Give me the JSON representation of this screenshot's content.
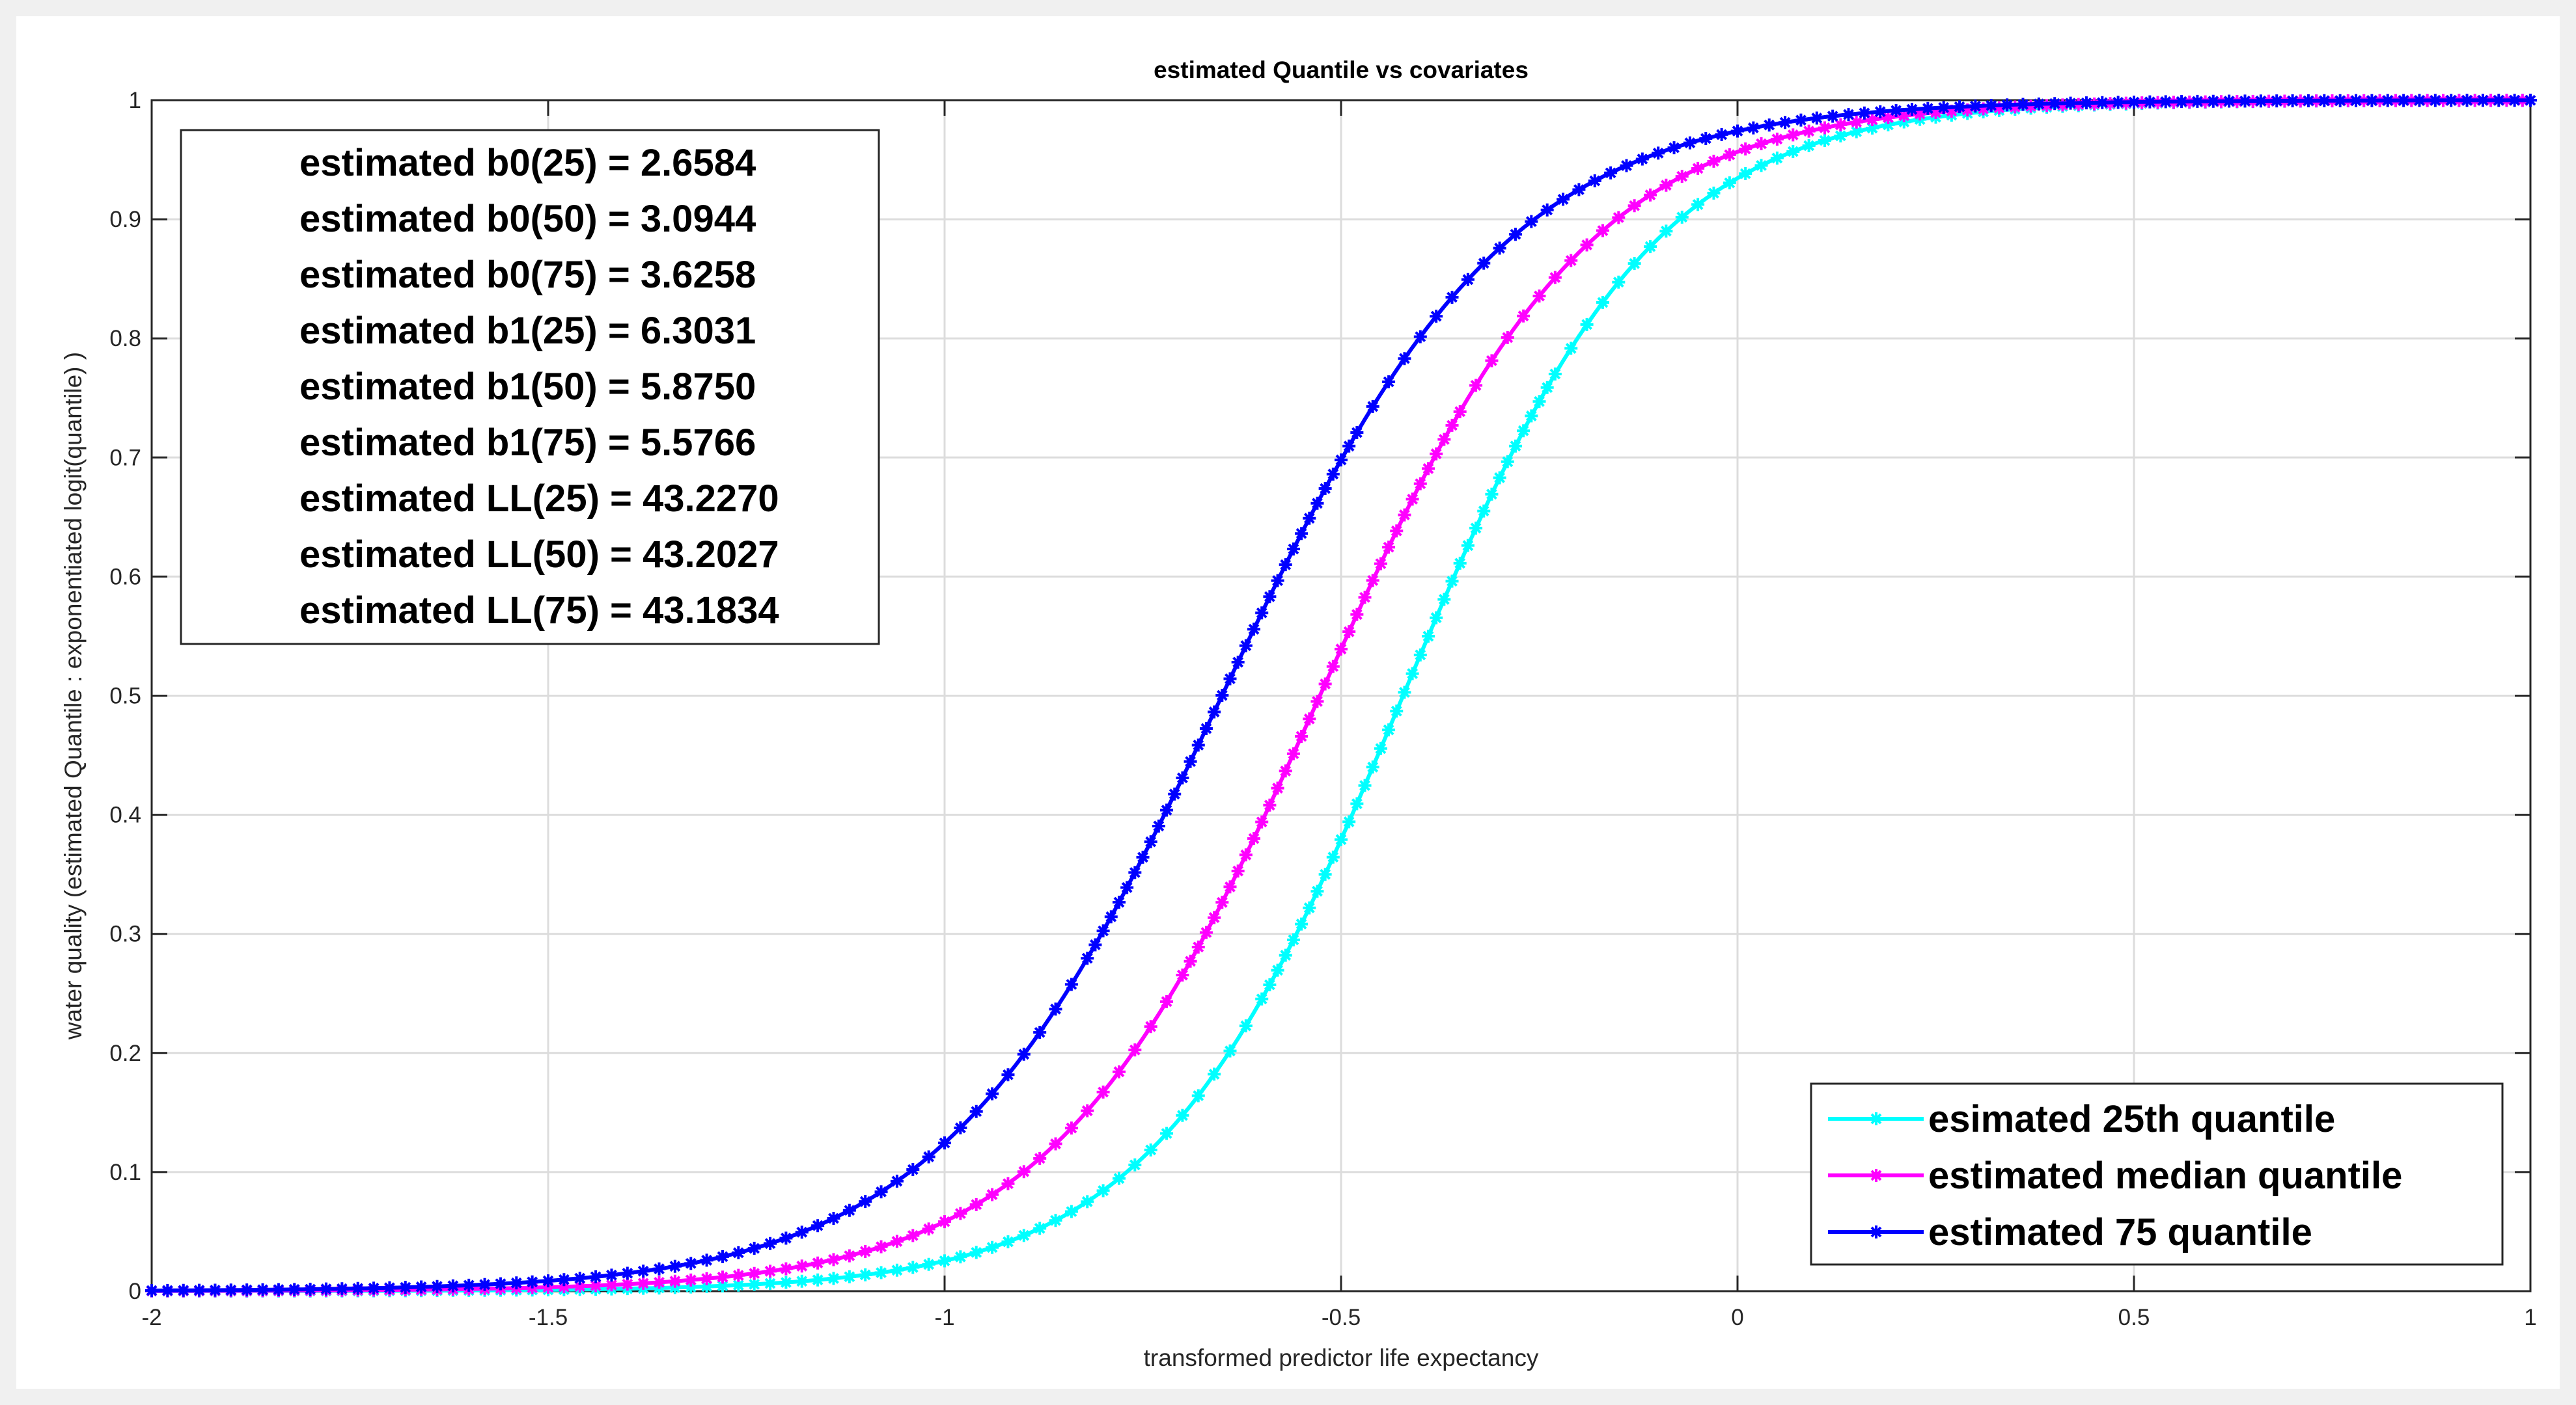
{
  "chart_data": {
    "type": "line",
    "title": "estimated Quantile vs covariates",
    "xlabel": "transformed predictor life expectancy",
    "ylabel": "water quality (estimated Quantile : exponentiated logit(quantile) )",
    "xlim": [
      -2,
      1
    ],
    "ylim": [
      0,
      1
    ],
    "xticks": [
      -2,
      -1.5,
      -1,
      -0.5,
      0,
      0.5,
      1
    ],
    "xtick_labels": [
      "-2",
      "-1.5",
      "-1",
      "-0.5",
      "0",
      "0.5",
      "1"
    ],
    "yticks": [
      0,
      0.1,
      0.2,
      0.3,
      0.4,
      0.5,
      0.6,
      0.7,
      0.8,
      0.9,
      1
    ],
    "ytick_labels": [
      "0",
      "0.1",
      "0.2",
      "0.3",
      "0.4",
      "0.5",
      "0.6",
      "0.7",
      "0.8",
      "0.9",
      "1"
    ],
    "grid": true,
    "legend_position": "bottom-right",
    "annotation_position": "top-left",
    "annotation_lines": [
      "estimated b0(25) = 2.6584",
      "estimated b0(50) = 3.0944",
      "estimated b0(75) = 3.6258",
      "estimated b1(25) = 6.3031",
      "estimated b1(50) = 5.8750",
      "estimated b1(75) = 5.5766",
      "estimated LL(25) = 43.2270",
      "estimated LL(50) = 43.2027",
      "estimated LL(75) = 43.1834"
    ],
    "curve_form": "y = exp(b0 + b1*x) / (1 + exp(b0 + b1*x))",
    "marker": "asterisk",
    "series": [
      {
        "name": "esimated 25th quantile",
        "b0": 2.6584,
        "b1": 6.3031,
        "color": "#00ffff"
      },
      {
        "name": "estimated median quantile",
        "b0": 3.0944,
        "b1": 5.875,
        "color": "#ff00ff"
      },
      {
        "name": "estimated 75 quantile",
        "b0": 3.6258,
        "b1": 5.5766,
        "color": "#0000ff"
      }
    ]
  }
}
